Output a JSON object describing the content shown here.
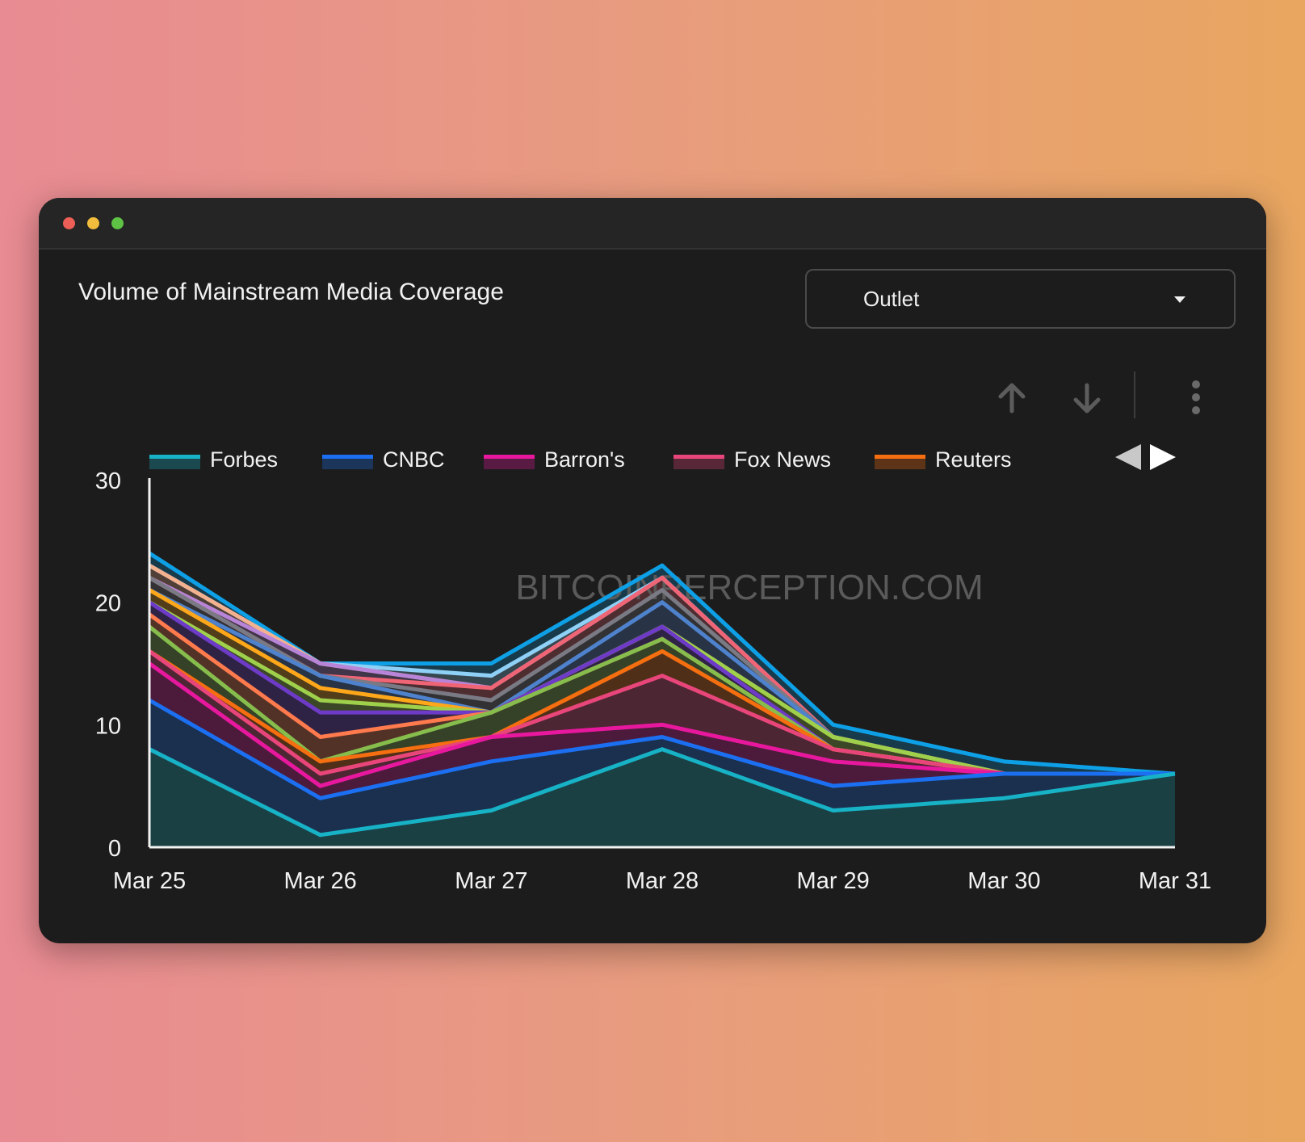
{
  "window": {
    "title": "Volume of Mainstream Media Coverage",
    "dropdown": {
      "selected": "Outlet"
    }
  },
  "toolbar": {
    "icons": [
      "arrow-up-icon",
      "arrow-down-icon",
      "more-vertical-icon"
    ]
  },
  "watermark": "BITCOINPERCEPTION.COM",
  "legend_nav": {
    "prev_icon": "triangle-left-icon",
    "next_icon": "triangle-right-icon"
  },
  "chart_data": {
    "type": "area",
    "stacked": true,
    "title": "Volume of Mainstream Media Coverage",
    "categories": [
      "Mar 25",
      "Mar 26",
      "Mar 27",
      "Mar 28",
      "Mar 29",
      "Mar 30",
      "Mar 31"
    ],
    "ylim": [
      0,
      30
    ],
    "yticks": [
      0,
      10,
      20,
      30
    ],
    "grid": false,
    "legend_position": "top",
    "series": [
      {
        "name": "Forbes",
        "color": "#17b2c6",
        "values": [
          8,
          1,
          3,
          8,
          3,
          4,
          6
        ]
      },
      {
        "name": "CNBC",
        "color": "#1b6ff0",
        "values": [
          4,
          3,
          4,
          1,
          2,
          2,
          0
        ]
      },
      {
        "name": "Barron's",
        "color": "#e8189e",
        "values": [
          3,
          1,
          2,
          1,
          2,
          0,
          0
        ]
      },
      {
        "name": "Fox News",
        "color": "#e8467a",
        "values": [
          1,
          1,
          0,
          4,
          1,
          0,
          0
        ]
      },
      {
        "name": "Reuters",
        "color": "#f56e10",
        "values": [
          0,
          1,
          0,
          2,
          0,
          0,
          0
        ]
      },
      {
        "color": "#86bd4c",
        "values": [
          2,
          0,
          2,
          1,
          0,
          0,
          0
        ]
      },
      {
        "color": "#ff7a4d",
        "values": [
          1,
          2,
          0,
          0,
          0,
          0,
          0
        ]
      },
      {
        "color": "#6d3bc7",
        "values": [
          1,
          2,
          0,
          1,
          0,
          0,
          0
        ]
      },
      {
        "color": "#9fd04c",
        "values": [
          0,
          1,
          0,
          0,
          1,
          0,
          0
        ]
      },
      {
        "color": "#ffa71a",
        "values": [
          1,
          1,
          0,
          0,
          0,
          0,
          0
        ]
      },
      {
        "color": "#4e82cc",
        "values": [
          0,
          1,
          0,
          2,
          0,
          0,
          0
        ]
      },
      {
        "color": "#7a7a84",
        "values": [
          1,
          0,
          1,
          1,
          0,
          0,
          0
        ]
      },
      {
        "color": "#f06575",
        "values": [
          0,
          0,
          1,
          1,
          0,
          0,
          0
        ]
      },
      {
        "color": "#b884d8",
        "values": [
          0,
          1,
          0,
          0,
          0,
          0,
          0
        ]
      },
      {
        "color": "#f4b18f",
        "values": [
          1,
          0,
          0,
          0,
          0,
          0,
          0
        ]
      },
      {
        "color": "#8fd0f6",
        "values": [
          0,
          0,
          1,
          0,
          0,
          0,
          0
        ]
      },
      {
        "color": "#0ea0e6",
        "values": [
          1,
          0,
          1,
          1,
          1,
          1,
          0
        ]
      }
    ]
  }
}
